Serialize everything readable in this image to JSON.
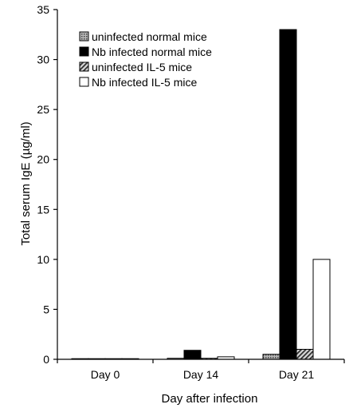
{
  "chart_data": {
    "type": "bar",
    "title": "",
    "xlabel": "Day after infection",
    "ylabel": "Total serum IgE (µg/ml)",
    "ylim": [
      0,
      35
    ],
    "yticks": [
      "0",
      "5",
      "10",
      "15",
      "20",
      "25",
      "30",
      "35"
    ],
    "categories": [
      "Day 0",
      "Day 14",
      "Day 21"
    ],
    "grid": false,
    "legend_position": "top-left",
    "series": [
      {
        "name": "uninfected normal mice",
        "values": [
          0.05,
          0.1,
          0.5
        ],
        "fill": "dots",
        "color": "#8a8a8a"
      },
      {
        "name": "Nb infected normal mice",
        "values": [
          0.05,
          0.9,
          33.0
        ],
        "fill": "solid",
        "color": "#000000"
      },
      {
        "name": "uninfected IL-5 mice",
        "values": [
          0.05,
          0.1,
          1.0
        ],
        "fill": "hatch",
        "color": "#6e6e6e"
      },
      {
        "name": "Nb infected IL-5 mice",
        "values": [
          0.05,
          0.25,
          10.0
        ],
        "fill": "white",
        "color": "#ffffff"
      }
    ]
  }
}
